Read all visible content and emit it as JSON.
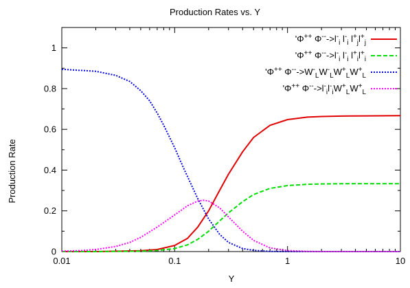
{
  "chart_data": {
    "type": "line",
    "title": "Production Rates vs. Y",
    "xlabel": "Y",
    "ylabel": "Production Rate",
    "x_scale": "log",
    "xlim": [
      0.01,
      10
    ],
    "ylim": [
      0,
      1.1
    ],
    "x_ticks": [
      0.01,
      0.1,
      1,
      10
    ],
    "x_tick_labels": [
      "0.01",
      "0.1",
      "1",
      "10"
    ],
    "y_ticks": [
      0,
      0.2,
      0.4,
      0.6,
      0.8,
      1
    ],
    "y_tick_labels": [
      "0",
      "0.2",
      "0.4",
      "0.6",
      "0.8",
      "1"
    ],
    "grid": false,
    "legend_position": "top-right",
    "series": [
      {
        "name": "'Φ++ Φ-->l-i l-i l+j l+j",
        "legend_parts": [
          {
            "t": "'Φ",
            "s": "n"
          },
          {
            "t": "++",
            "s": "sup"
          },
          {
            "t": " Φ",
            "s": "n"
          },
          {
            "t": "--",
            "s": "sup"
          },
          {
            "t": "->l",
            "s": "n"
          },
          {
            "t": "-",
            "s": "sup"
          },
          {
            "t": "i",
            "s": "sub"
          },
          {
            "t": " l",
            "s": "n"
          },
          {
            "t": "-",
            "s": "sup"
          },
          {
            "t": "i",
            "s": "sub"
          },
          {
            "t": " l",
            "s": "n"
          },
          {
            "t": "+",
            "s": "sup"
          },
          {
            "t": "j",
            "s": "sub"
          },
          {
            "t": "l",
            "s": "n"
          },
          {
            "t": "+",
            "s": "sup"
          },
          {
            "t": "j",
            "s": "sub"
          }
        ],
        "color": "#e00000",
        "dash": "solid",
        "x": [
          0.01,
          0.02,
          0.05,
          0.07,
          0.1,
          0.13,
          0.16,
          0.2,
          0.25,
          0.3,
          0.4,
          0.5,
          0.7,
          1,
          1.5,
          2,
          3,
          5,
          10
        ],
        "y": [
          0.0,
          0.0,
          0.004,
          0.01,
          0.03,
          0.065,
          0.12,
          0.2,
          0.3,
          0.38,
          0.49,
          0.56,
          0.62,
          0.648,
          0.66,
          0.663,
          0.665,
          0.666,
          0.667
        ]
      },
      {
        "name": "'Φ++ Φ-->l-i l-i l+i l+i",
        "legend_parts": [
          {
            "t": "'Φ",
            "s": "n"
          },
          {
            "t": "++",
            "s": "sup"
          },
          {
            "t": " Φ",
            "s": "n"
          },
          {
            "t": "--",
            "s": "sup"
          },
          {
            "t": "->l",
            "s": "n"
          },
          {
            "t": "-",
            "s": "sup"
          },
          {
            "t": "i",
            "s": "sub"
          },
          {
            "t": " l",
            "s": "n"
          },
          {
            "t": "-",
            "s": "sup"
          },
          {
            "t": "i",
            "s": "sub"
          },
          {
            "t": " l",
            "s": "n"
          },
          {
            "t": "+",
            "s": "sup"
          },
          {
            "t": "i",
            "s": "sub"
          },
          {
            "t": "l",
            "s": "n"
          },
          {
            "t": "+",
            "s": "sup"
          },
          {
            "t": "i",
            "s": "sub"
          }
        ],
        "color": "#00dd00",
        "dash": "dashed",
        "x": [
          0.01,
          0.02,
          0.05,
          0.07,
          0.1,
          0.13,
          0.16,
          0.2,
          0.25,
          0.3,
          0.4,
          0.5,
          0.7,
          1,
          1.5,
          2,
          3,
          5,
          10
        ],
        "y": [
          0.0,
          0.0,
          0.002,
          0.005,
          0.015,
          0.033,
          0.06,
          0.1,
          0.15,
          0.19,
          0.245,
          0.28,
          0.31,
          0.324,
          0.33,
          0.332,
          0.333,
          0.333,
          0.333
        ]
      },
      {
        "name": "'Φ++ Φ-->W-L W-L W+L W+L",
        "legend_parts": [
          {
            "t": "'Φ",
            "s": "n"
          },
          {
            "t": "++",
            "s": "sup"
          },
          {
            "t": " Φ",
            "s": "n"
          },
          {
            "t": "--",
            "s": "sup"
          },
          {
            "t": "->W",
            "s": "n"
          },
          {
            "t": "-",
            "s": "sup"
          },
          {
            "t": "L",
            "s": "sub"
          },
          {
            "t": "W",
            "s": "n"
          },
          {
            "t": "-",
            "s": "sup"
          },
          {
            "t": "L",
            "s": "sub"
          },
          {
            "t": "W",
            "s": "n"
          },
          {
            "t": "+",
            "s": "sup"
          },
          {
            "t": "L",
            "s": "sub"
          },
          {
            "t": "W",
            "s": "n"
          },
          {
            "t": "+",
            "s": "sup"
          },
          {
            "t": "L",
            "s": "sub"
          }
        ],
        "color": "#0000dd",
        "dash": "dotted",
        "x": [
          0.01,
          0.02,
          0.03,
          0.04,
          0.05,
          0.06,
          0.07,
          0.08,
          0.1,
          0.12,
          0.14,
          0.16,
          0.2,
          0.25,
          0.3,
          0.4,
          0.5,
          0.7,
          1,
          2,
          10
        ],
        "y": [
          0.895,
          0.885,
          0.865,
          0.835,
          0.79,
          0.74,
          0.68,
          0.62,
          0.51,
          0.41,
          0.33,
          0.26,
          0.16,
          0.085,
          0.045,
          0.015,
          0.006,
          0.001,
          0.0,
          0.0,
          0.0
        ]
      },
      {
        "name": "'Φ++ Φ-->l-i l-i W+L W+L",
        "legend_parts": [
          {
            "t": "'Φ",
            "s": "n"
          },
          {
            "t": "++",
            "s": "sup"
          },
          {
            "t": " Φ",
            "s": "n"
          },
          {
            "t": "--",
            "s": "sup"
          },
          {
            "t": "->l",
            "s": "n"
          },
          {
            "t": "-",
            "s": "sup"
          },
          {
            "t": "i",
            "s": "sub"
          },
          {
            "t": "l",
            "s": "n"
          },
          {
            "t": "-",
            "s": "sup"
          },
          {
            "t": "i",
            "s": "sub"
          },
          {
            "t": "W",
            "s": "n"
          },
          {
            "t": "+",
            "s": "sup"
          },
          {
            "t": "L",
            "s": "sub"
          },
          {
            "t": "W",
            "s": "n"
          },
          {
            "t": "+",
            "s": "sup"
          },
          {
            "t": "L",
            "s": "sub"
          }
        ],
        "color": "#ff00ff",
        "dash": "dotted",
        "x": [
          0.01,
          0.015,
          0.02,
          0.03,
          0.04,
          0.05,
          0.07,
          0.1,
          0.13,
          0.16,
          0.18,
          0.2,
          0.25,
          0.3,
          0.4,
          0.5,
          0.7,
          1,
          1.5,
          2,
          10
        ],
        "y": [
          0.002,
          0.005,
          0.01,
          0.025,
          0.045,
          0.07,
          0.12,
          0.18,
          0.225,
          0.248,
          0.252,
          0.248,
          0.215,
          0.17,
          0.1,
          0.055,
          0.018,
          0.005,
          0.001,
          0.0,
          0.0
        ]
      }
    ]
  }
}
